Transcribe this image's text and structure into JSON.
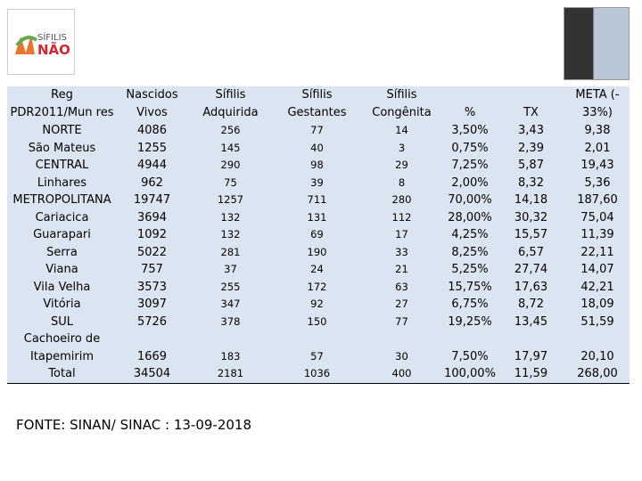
{
  "logo": {
    "line1": "SÍFILIS",
    "line2": "NÃO"
  },
  "table": {
    "header": [
      "Reg\nPDR2011/Mun res",
      "Nascidos\nVivos",
      "Sífilis\nAdquirida",
      "Sífilis\nGestantes",
      "Sífilis\nCongênita",
      "%",
      "TX",
      "META (-\n33%)"
    ],
    "rows": [
      [
        "NORTE",
        "4086",
        "256",
        "77",
        "14",
        "3,50%",
        "3,43",
        "9,38"
      ],
      [
        "São Mateus",
        "1255",
        "145",
        "40",
        "3",
        "0,75%",
        "2,39",
        "2,01"
      ],
      [
        "CENTRAL",
        "4944",
        "290",
        "98",
        "29",
        "7,25%",
        "5,87",
        "19,43"
      ],
      [
        "Linhares",
        "962",
        "75",
        "39",
        "8",
        "2,00%",
        "8,32",
        "5,36"
      ],
      [
        "METROPOLITANA",
        "19747",
        "1257",
        "711",
        "280",
        "70,00%",
        "14,18",
        "187,60"
      ],
      [
        "Cariacica",
        "3694",
        "132",
        "131",
        "112",
        "28,00%",
        "30,32",
        "75,04"
      ],
      [
        "Guarapari",
        "1092",
        "132",
        "69",
        "17",
        "4,25%",
        "15,57",
        "11,39"
      ],
      [
        "Serra",
        "5022",
        "281",
        "190",
        "33",
        "8,25%",
        "6,57",
        "22,11"
      ],
      [
        "Viana",
        "757",
        "37",
        "24",
        "21",
        "5,25%",
        "27,74",
        "14,07"
      ],
      [
        "Vila Velha",
        "3573",
        "255",
        "172",
        "63",
        "15,75%",
        "17,63",
        "42,21"
      ],
      [
        "Vitória",
        "3097",
        "347",
        "92",
        "27",
        "6,75%",
        "8,72",
        "18,09"
      ],
      [
        "SUL",
        "5726",
        "378",
        "150",
        "77",
        "19,25%",
        "13,45",
        "51,59"
      ],
      [
        "Cachoeiro de\nItapemirim",
        "1669",
        "183",
        "57",
        "30",
        "7,50%",
        "17,97",
        "20,10"
      ],
      [
        "Total",
        "34504",
        "2181",
        "1036",
        "400",
        "100,00%",
        "11,59",
        "268,00"
      ]
    ]
  },
  "source": "FONTE: SINAN/ SINAC : 13-09-2018"
}
